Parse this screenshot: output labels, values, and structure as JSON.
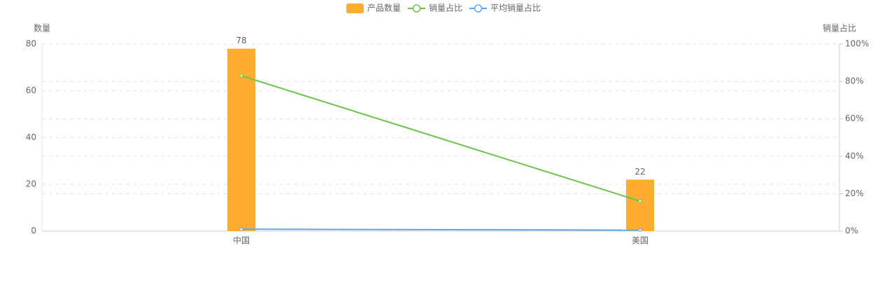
{
  "chart_data": {
    "type": "bar-line",
    "y_label": "数量",
    "y2_label": "销量占比",
    "categories": [
      "中国",
      "美国"
    ],
    "series": [
      {
        "name": "产品数量",
        "type": "bar",
        "color": "#ffad30",
        "values": [
          78,
          22
        ]
      },
      {
        "name": "销量占比",
        "type": "line",
        "axis": "y2",
        "color": "#6cc24a",
        "values": [
          83,
          16
        ]
      },
      {
        "name": "平均销量占比",
        "type": "line",
        "axis": "y2",
        "color": "#5ba8ec",
        "values": [
          1,
          0.5
        ]
      }
    ],
    "ylim": [
      0,
      80
    ],
    "yticks": [
      0,
      20,
      40,
      60,
      80
    ],
    "y2lim": [
      0,
      100
    ],
    "y2ticks": [
      {
        "value": 0,
        "label": "0%"
      },
      {
        "value": 20,
        "label": "20%"
      },
      {
        "value": 40,
        "label": "40%"
      },
      {
        "value": 60,
        "label": "60%"
      },
      {
        "value": 80,
        "label": "80%"
      },
      {
        "value": 100,
        "label": "100%"
      }
    ],
    "grid": true,
    "legend": "top"
  }
}
